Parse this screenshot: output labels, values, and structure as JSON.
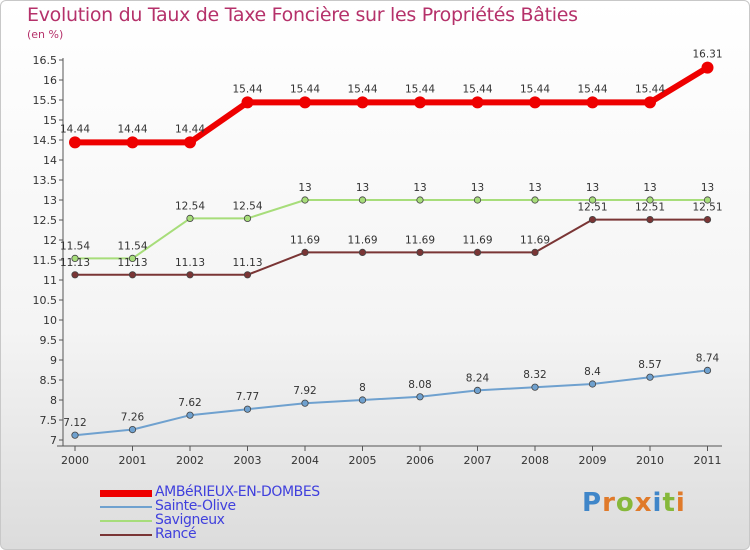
{
  "chart_data": {
    "type": "line",
    "title": "Evolution du Taux de Taxe Foncière sur les Propriétés Bâties",
    "unit_label": "(en %)",
    "xlabel": "",
    "ylabel": "",
    "categories": [
      "2000",
      "2001",
      "2002",
      "2003",
      "2004",
      "2005",
      "2006",
      "2007",
      "2008",
      "2009",
      "2010",
      "2011"
    ],
    "ylim": [
      7,
      16.5
    ],
    "yticks": [
      "7",
      "7.5",
      "8",
      "8.5",
      "9",
      "9.5",
      "10",
      "10.5",
      "11",
      "11.5",
      "12",
      "12.5",
      "13",
      "13.5",
      "14",
      "14.5",
      "15",
      "15.5",
      "16",
      "16.5"
    ],
    "grid": false,
    "series": [
      {
        "name": "AMBéRIEUX-EN-DOMBES",
        "color": "#ee0000",
        "legend_color": "#4040dd",
        "values": [
          14.44,
          14.44,
          14.44,
          15.44,
          15.44,
          15.44,
          15.44,
          15.44,
          15.44,
          15.44,
          15.44,
          16.31
        ],
        "labels": [
          "14.44",
          "14.44",
          "14.44",
          "15.44",
          "15.44",
          "15.44",
          "15.44",
          "15.44",
          "15.44",
          "15.44",
          "15.44",
          "16.31"
        ]
      },
      {
        "name": "Sainte-Olive",
        "color": "#6fa1cf",
        "legend_color": "#4040dd",
        "values": [
          7.12,
          7.26,
          7.62,
          7.77,
          7.92,
          8,
          8.08,
          8.24,
          8.32,
          8.4,
          8.57,
          8.74
        ],
        "labels": [
          "7.12",
          "7.26",
          "7.62",
          "7.77",
          "7.92",
          "8",
          "8.08",
          "8.24",
          "8.32",
          "8.4",
          "8.57",
          "8.74"
        ]
      },
      {
        "name": "Savigneux",
        "color": "#a7dd7a",
        "legend_color": "#4040dd",
        "values": [
          11.54,
          11.54,
          12.54,
          12.54,
          13,
          13,
          13,
          13,
          13,
          13,
          13,
          13
        ],
        "labels": [
          "11.54",
          "11.54",
          "12.54",
          "12.54",
          "13",
          "13",
          "13",
          "13",
          "13",
          "13",
          "13",
          "13"
        ]
      },
      {
        "name": "Rancé",
        "color": "#7a3535",
        "legend_color": "#4040dd",
        "values": [
          11.13,
          11.13,
          11.13,
          11.13,
          11.69,
          11.69,
          11.69,
          11.69,
          11.69,
          12.51,
          12.51,
          12.51
        ],
        "labels": [
          "11.13",
          "11.13",
          "11.13",
          "11.13",
          "11.69",
          "11.69",
          "11.69",
          "11.69",
          "11.69",
          "12.51",
          "12.51",
          "12.51"
        ]
      }
    ]
  },
  "logo": {
    "text": "Proxiti",
    "letters": [
      {
        "ch": "P",
        "color": "#3f86c9"
      },
      {
        "ch": "r",
        "color": "#e07a2a"
      },
      {
        "ch": "o",
        "color": "#86b83a"
      },
      {
        "ch": "x",
        "color": "#e07a2a"
      },
      {
        "ch": "i",
        "color": "#3f86c9"
      },
      {
        "ch": "t",
        "color": "#86b83a"
      },
      {
        "ch": "i",
        "color": "#e07a2a"
      }
    ]
  }
}
